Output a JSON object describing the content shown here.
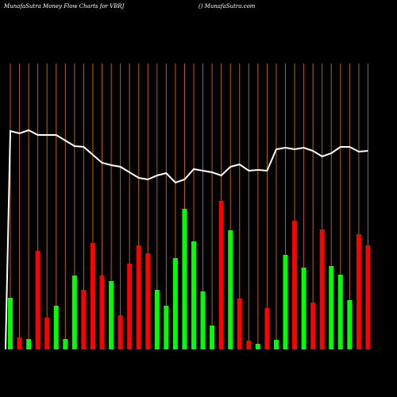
{
  "chart_data": {
    "type": "bar",
    "title": "MunafaSutra  Money Flow  Charts for VBRJ",
    "subtitle": "() MunafaSutra.com",
    "values": [
      65,
      15,
      13,
      124,
      40,
      55,
      13,
      93,
      75,
      134,
      93,
      86,
      43,
      108,
      131,
      121,
      75,
      55,
      115,
      177,
      136,
      73,
      30,
      187,
      150,
      64,
      11,
      7,
      52,
      12,
      119,
      162,
      103,
      59,
      151,
      105,
      94,
      62,
      145,
      131
    ],
    "colors": [
      "#00ff00",
      "#ff0000",
      "#00ff00",
      "#ff0000",
      "#ff0000",
      "#00ff00",
      "#00ff00",
      "#00ff00",
      "#ff0000",
      "#ff0000",
      "#ff0000",
      "#00ff00",
      "#ff0000",
      "#ff0000",
      "#ff0000",
      "#ff0000",
      "#00ff00",
      "#00ff00",
      "#00ff00",
      "#00ff00",
      "#00ff00",
      "#00ff00",
      "#00ff00",
      "#ff0000",
      "#00ff00",
      "#ff0000",
      "#ff0000",
      "#00ff00",
      "#ff0000",
      "#00ff00",
      "#00ff00",
      "#ff0000",
      "#00ff00",
      "#ff0000",
      "#ff0000",
      "#00ff00",
      "#00ff00",
      "#00ff00",
      "#ff0000",
      "#ff0000"
    ],
    "line_values": [
      275,
      272,
      276,
      270,
      270,
      270,
      263,
      256,
      255,
      245,
      235,
      232,
      230,
      223,
      216,
      214,
      219,
      222,
      210,
      214,
      227,
      225,
      223,
      219,
      230,
      233,
      225,
      226,
      225,
      252,
      254,
      252,
      254,
      250,
      243,
      247,
      255,
      255,
      249,
      250
    ],
    "line_color": "#ffffff",
    "grid_color": "#b8650a",
    "ylim": [
      0,
      360
    ]
  }
}
